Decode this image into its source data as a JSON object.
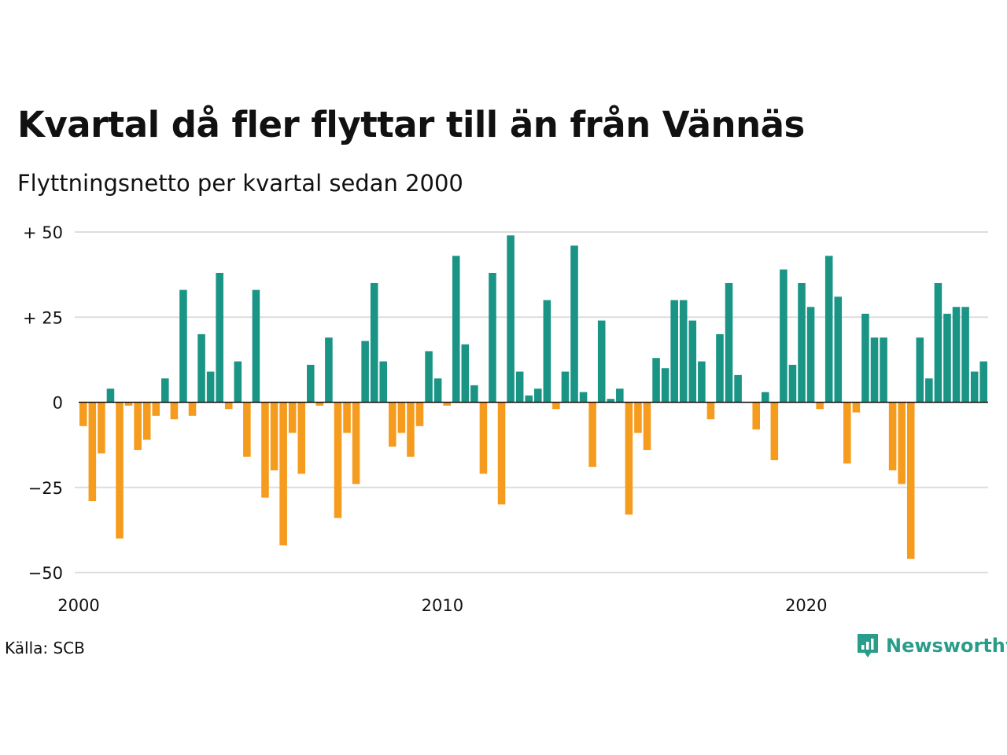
{
  "title": "Kvartal då fler flyttar till än från Vännäs",
  "subtitle": "Flyttningsnetto per kvartal sedan 2000",
  "source": "Källa: SCB",
  "brand": {
    "name": "Newsworthy",
    "color": "#2a9d8a",
    "icon": "newsworthy-logo-icon"
  },
  "chart_data": {
    "type": "bar",
    "title": "Kvartal då fler flyttar till än från Vännäs",
    "subtitle": "Flyttningsnetto per kvartal sedan 2000",
    "ylim": [
      -50,
      50
    ],
    "yticks": [
      50,
      25,
      0,
      -25,
      -50
    ],
    "ytick_labels": [
      "+ 50",
      "+ 25",
      "0",
      "−25",
      "−50"
    ],
    "xticks": [
      2000,
      2010,
      2020
    ],
    "xtick_labels": [
      "2000",
      "2010",
      "2020"
    ],
    "x_start": 2000,
    "grid": true,
    "colors": {
      "positive": "#1a9485",
      "negative": "#f59c1e",
      "grid": "#dddddd",
      "zero": "#111111"
    },
    "values": [
      -7,
      -29,
      -15,
      4,
      -40,
      -1,
      -14,
      -11,
      -4,
      7,
      -5,
      33,
      -4,
      20,
      9,
      38,
      -2,
      12,
      -16,
      33,
      -28,
      -20,
      -42,
      -9,
      -21,
      11,
      -1,
      19,
      -34,
      -9,
      -24,
      18,
      35,
      12,
      -13,
      -9,
      -16,
      -7,
      15,
      7,
      -1,
      43,
      17,
      5,
      -21,
      38,
      -30,
      49,
      9,
      2,
      4,
      30,
      -2,
      9,
      46,
      3,
      -19,
      24,
      1,
      4,
      -33,
      -9,
      -14,
      13,
      10,
      30,
      30,
      24,
      12,
      -5,
      20,
      35,
      8,
      0,
      -8,
      3,
      -17,
      39,
      11,
      35,
      28,
      -2,
      43,
      31,
      -18,
      -3,
      26,
      19,
      19,
      -20,
      -24,
      -46,
      19,
      7,
      35,
      26,
      28,
      28,
      9,
      12
    ]
  }
}
